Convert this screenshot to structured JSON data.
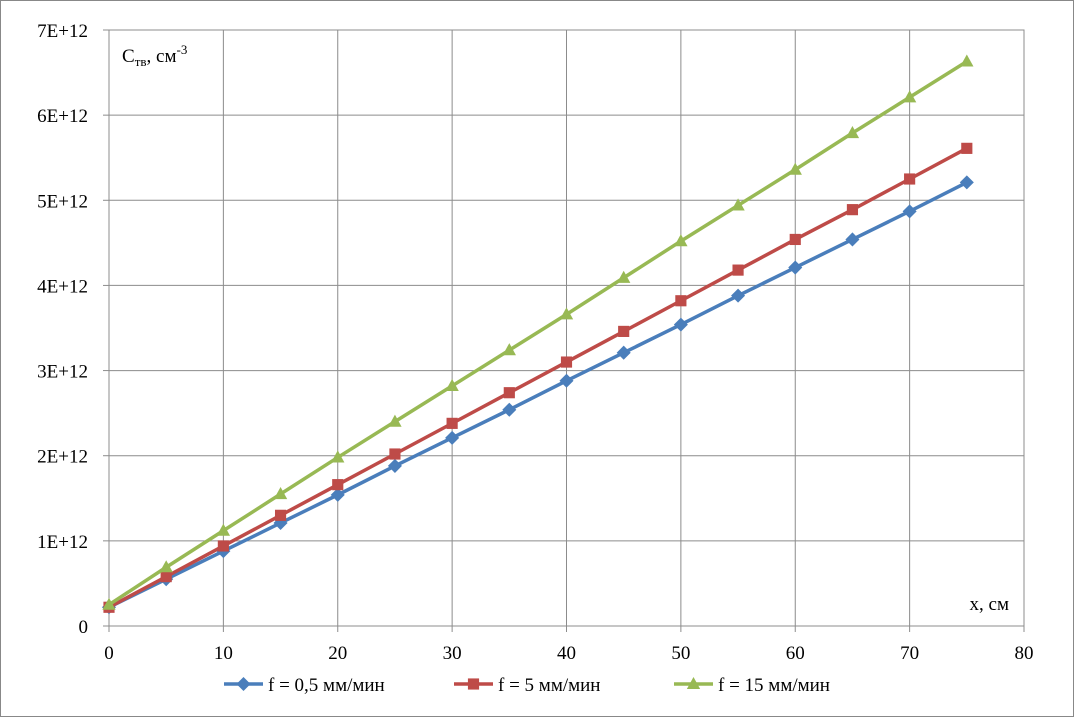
{
  "chart_data": {
    "type": "line",
    "ylabel_main": "C",
    "ylabel_sub": "тв",
    "ylabel_rest": ", см",
    "ylabel_sup": "-3",
    "xlabel": "x, см",
    "xlim": [
      0,
      80
    ],
    "ylim": [
      0,
      7000000000000
    ],
    "xticks": [
      "0",
      "10",
      "20",
      "30",
      "40",
      "50",
      "60",
      "70",
      "80"
    ],
    "yticks": [
      "0",
      "1E+12",
      "2E+12",
      "3E+12",
      "4E+12",
      "5E+12",
      "6E+12",
      "7E+12"
    ],
    "grid": true,
    "legend_position": "bottom",
    "x": [
      0,
      5,
      10,
      15,
      20,
      25,
      30,
      35,
      40,
      45,
      50,
      55,
      60,
      65,
      70,
      75
    ],
    "series": [
      {
        "name": "f = 0,5 мм/мин",
        "color": "#4a7ebb",
        "marker": "diamond",
        "values": [
          220000000000.0,
          550000000000.0,
          880000000000.0,
          1210000000000.0,
          1540000000000.0,
          1880000000000.0,
          2210000000000.0,
          2540000000000.0,
          2880000000000.0,
          3210000000000.0,
          3540000000000.0,
          3880000000000.0,
          4210000000000.0,
          4540000000000.0,
          4870000000000.0,
          5210000000000.0
        ]
      },
      {
        "name": "f = 5 мм/мин",
        "color": "#be4b48",
        "marker": "square",
        "values": [
          220000000000.0,
          580000000000.0,
          940000000000.0,
          1300000000000.0,
          1660000000000.0,
          2020000000000.0,
          2380000000000.0,
          2740000000000.0,
          3100000000000.0,
          3460000000000.0,
          3820000000000.0,
          4180000000000.0,
          4540000000000.0,
          4890000000000.0,
          5250000000000.0,
          5610000000000.0
        ]
      },
      {
        "name": "f = 15 мм/мин",
        "color": "#98b954",
        "marker": "triangle",
        "values": [
          250000000000.0,
          690000000000.0,
          1120000000000.0,
          1550000000000.0,
          1980000000000.0,
          2400000000000.0,
          2820000000000.0,
          3240000000000.0,
          3660000000000.0,
          4090000000000.0,
          4520000000000.0,
          4940000000000.0,
          5360000000000.0,
          5790000000000.0,
          6210000000000.0,
          6630000000000.0
        ]
      }
    ]
  }
}
